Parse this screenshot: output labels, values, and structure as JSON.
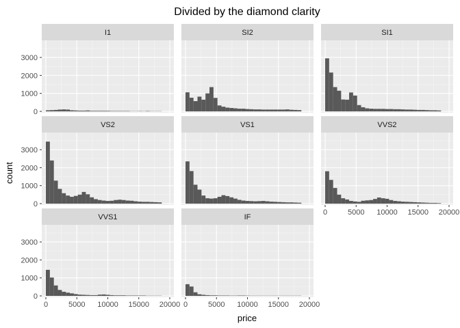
{
  "chart_data": {
    "type": "bar",
    "title": "Divided by the diamond clarity",
    "xlabel": "price",
    "ylabel": "count",
    "xlim": [
      0,
      20000
    ],
    "ylim": [
      0,
      3800
    ],
    "x_ticks": [
      0,
      5000,
      10000,
      15000,
      20000
    ],
    "x_tick_labels": [
      "0",
      "5000",
      "10000",
      "15000",
      "20000"
    ],
    "y_ticks": [
      0,
      1000,
      2000,
      3000
    ],
    "y_tick_labels": [
      "0",
      "1000",
      "2000",
      "3000"
    ],
    "bin_start": 0,
    "bin_width": 645,
    "grid": true,
    "bar_color": "#595959",
    "panel_background": "#ebebeb",
    "strip_background": "#d9d9d9",
    "panels": [
      {
        "name": "I1",
        "values": [
          60,
          70,
          80,
          100,
          110,
          100,
          60,
          50,
          40,
          40,
          50,
          30,
          30,
          30,
          30,
          30,
          20,
          20,
          20,
          20,
          20,
          10,
          10,
          15,
          10,
          20,
          10,
          10,
          10
        ]
      },
      {
        "name": "SI2",
        "values": [
          1060,
          760,
          570,
          820,
          650,
          1000,
          1350,
          750,
          330,
          260,
          210,
          190,
          170,
          150,
          150,
          130,
          120,
          110,
          110,
          100,
          100,
          100,
          100,
          100,
          100,
          110,
          90,
          80,
          70
        ]
      },
      {
        "name": "SI1",
        "values": [
          2950,
          2160,
          1350,
          1150,
          660,
          650,
          1050,
          880,
          350,
          230,
          170,
          150,
          140,
          140,
          140,
          130,
          130,
          120,
          120,
          110,
          100,
          100,
          90,
          80,
          80,
          70,
          60,
          60,
          50
        ]
      },
      {
        "name": "VS2",
        "values": [
          3450,
          2400,
          1280,
          820,
          580,
          450,
          380,
          430,
          500,
          650,
          520,
          350,
          250,
          200,
          170,
          150,
          160,
          200,
          220,
          200,
          170,
          160,
          130,
          110,
          100,
          100,
          90,
          80,
          70
        ]
      },
      {
        "name": "VS1",
        "values": [
          2350,
          1810,
          1050,
          780,
          450,
          300,
          280,
          300,
          380,
          470,
          420,
          350,
          280,
          210,
          170,
          150,
          140,
          130,
          140,
          150,
          130,
          110,
          100,
          90,
          80,
          70,
          70,
          60,
          50
        ]
      },
      {
        "name": "VVS2",
        "values": [
          1800,
          1320,
          870,
          500,
          300,
          230,
          150,
          120,
          100,
          160,
          180,
          200,
          260,
          340,
          300,
          270,
          200,
          150,
          130,
          110,
          100,
          90,
          80,
          70,
          60,
          50,
          40,
          40,
          30
        ]
      },
      {
        "name": "VVS1",
        "values": [
          1450,
          1020,
          580,
          330,
          230,
          180,
          140,
          100,
          70,
          60,
          50,
          40,
          40,
          70,
          80,
          60,
          40,
          30,
          30,
          30,
          20,
          20,
          20,
          20,
          20,
          10,
          10,
          10,
          10
        ]
      },
      {
        "name": "IF",
        "values": [
          650,
          520,
          200,
          90,
          60,
          40,
          30,
          30,
          20,
          20,
          20,
          15,
          15,
          20,
          20,
          15,
          10,
          10,
          10,
          10,
          10,
          10,
          10,
          10,
          10,
          10,
          10,
          10,
          10
        ]
      }
    ]
  }
}
